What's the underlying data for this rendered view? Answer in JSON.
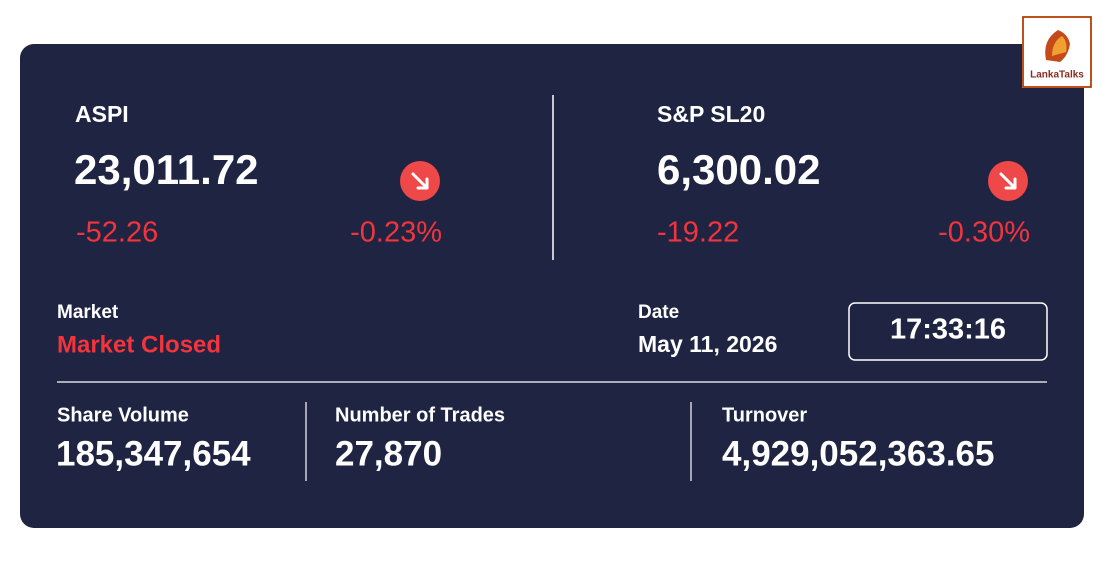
{
  "logo": "LankaTalks",
  "indices": [
    {
      "name": "ASPI",
      "value": "23,011.72",
      "change": "-52.26",
      "percent": "-0.23%"
    },
    {
      "name": "S&P SL20",
      "value": "6,300.02",
      "change": "-19.22",
      "percent": "-0.30%"
    }
  ],
  "market": {
    "label": "Market",
    "status": "Market Closed"
  },
  "date": {
    "label": "Date",
    "value": "May 11, 2026"
  },
  "time": "17:33:16",
  "stats": [
    {
      "label": "Share Volume",
      "value": "185,347,654"
    },
    {
      "label": "Number of Trades",
      "value": "27,870"
    },
    {
      "label": "Turnover",
      "value": "4,929,052,363.65"
    }
  ]
}
